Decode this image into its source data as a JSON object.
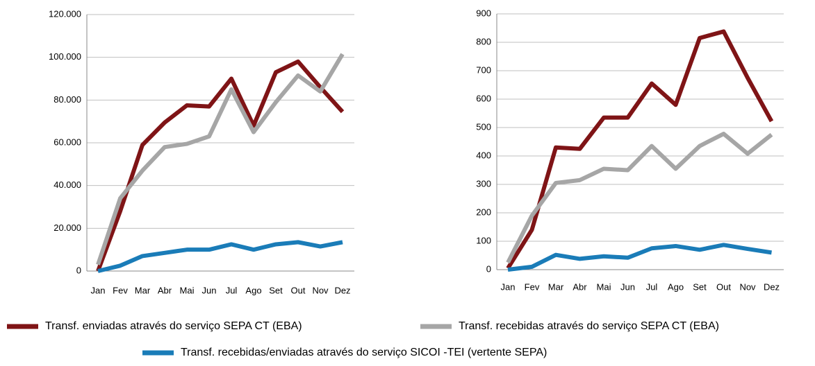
{
  "chart_data": [
    {
      "type": "line",
      "categories": [
        "Jan",
        "Fev",
        "Mar",
        "Abr",
        "Mai",
        "Jun",
        "Jul",
        "Ago",
        "Set",
        "Out",
        "Nov",
        "Dez"
      ],
      "ylim": [
        0,
        120000
      ],
      "yticks": [
        0,
        {
          "value": 20000,
          "label": "20.000"
        },
        {
          "value": 40000,
          "label": "40.000"
        },
        {
          "value": 60000,
          "label": "60.000"
        },
        {
          "value": 80000,
          "label": "80.000"
        },
        {
          "value": 100000,
          "label": "100.000"
        },
        {
          "value": 120000,
          "label": "120.000"
        }
      ],
      "grid": true,
      "series": [
        {
          "name": "Transf. enviadas através do serviço SEPA CT (EBA)",
          "color": "#7f1416",
          "values": [
            0,
            28000,
            59000,
            69500,
            77500,
            77000,
            90000,
            68000,
            93000,
            98000,
            86000,
            74500
          ]
        },
        {
          "name": "Transf. recebidas através do serviço SEPA CT (EBA)",
          "color": "#a6a6a6",
          "values": [
            3000,
            34000,
            47000,
            58000,
            59500,
            63000,
            85000,
            65000,
            79000,
            91500,
            84000,
            101500
          ]
        },
        {
          "name": "Transf. recebidas/enviadas através do serviço SICOI -TEI (vertente SEPA)",
          "color": "#1a7cb8",
          "values": [
            0,
            2500,
            7000,
            8500,
            10000,
            10000,
            12500,
            10000,
            12500,
            13500,
            11500,
            13500
          ]
        }
      ]
    },
    {
      "type": "line",
      "categories": [
        "Jan",
        "Fev",
        "Mar",
        "Abr",
        "Mai",
        "Jun",
        "Jul",
        "Ago",
        "Set",
        "Out",
        "Nov",
        "Dez"
      ],
      "ylim": [
        0,
        900
      ],
      "yticks": [
        0,
        100,
        200,
        300,
        400,
        500,
        600,
        700,
        800,
        900
      ],
      "grid": true,
      "series": [
        {
          "color": "#7f1416",
          "values": [
            5,
            140,
            430,
            425,
            535,
            535,
            655,
            580,
            815,
            838,
            675,
            522
          ]
        },
        {
          "color": "#a6a6a6",
          "values": [
            25,
            190,
            305,
            315,
            355,
            350,
            435,
            355,
            435,
            478,
            408,
            475
          ]
        },
        {
          "color": "#1a7cb8",
          "values": [
            0,
            10,
            52,
            38,
            47,
            42,
            75,
            83,
            70,
            87,
            73,
            60
          ]
        }
      ]
    }
  ]
}
